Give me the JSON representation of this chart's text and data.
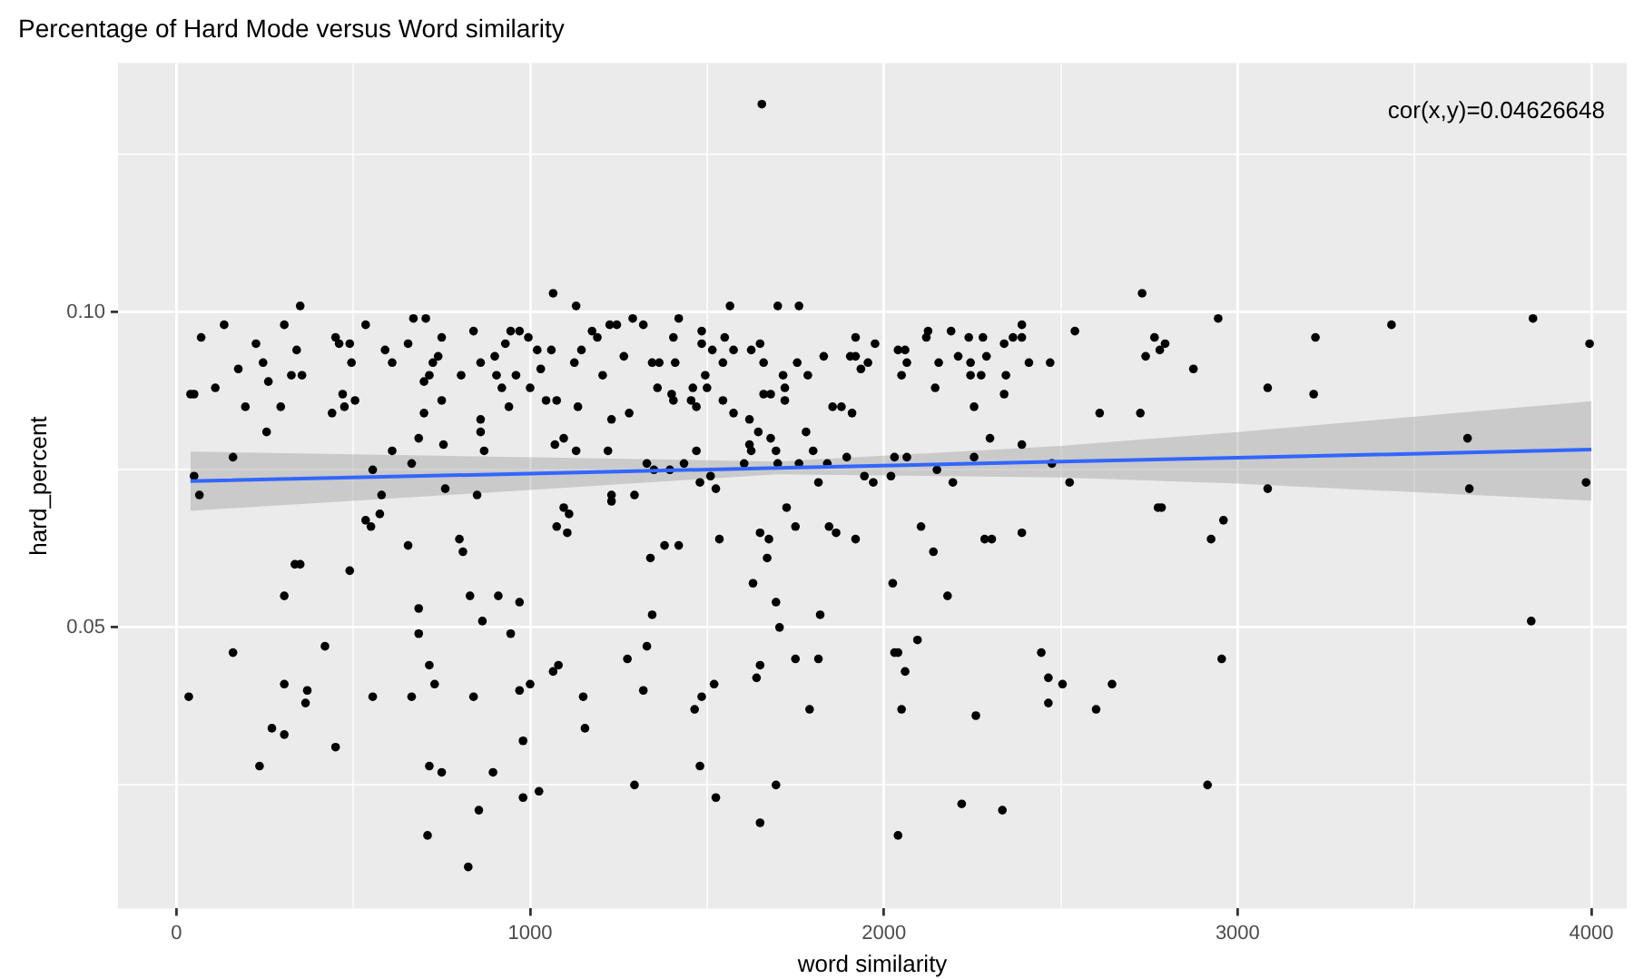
{
  "chart_data": {
    "type": "scatter",
    "title": "Percentage of Hard Mode versus Word similarity",
    "xlabel": "word similarity",
    "ylabel": "hard_percent",
    "xlim": [
      -165,
      4100
    ],
    "ylim": [
      0.0054,
      0.1395
    ],
    "xticks": [
      0,
      {
        "value": 500,
        "label": null
      },
      1000,
      {
        "value": 1500,
        "label": null
      },
      2000,
      {
        "value": 2500,
        "label": null
      },
      3000,
      {
        "value": 3500,
        "label": null
      },
      4000
    ],
    "yticks": [
      {
        "value": 0.025,
        "label": null
      },
      {
        "value": 0.05,
        "label": "0.05"
      },
      {
        "value": 0.075,
        "label": null
      },
      {
        "value": 0.1,
        "label": "0.10"
      },
      {
        "value": 0.125,
        "label": null
      }
    ],
    "grid": true,
    "marker": "circle",
    "annotations": [
      "cor(x,y)=0.04626648"
    ],
    "series": [
      {
        "type": "scatter",
        "color": "#000000",
        "x": [
          40,
          70,
          135,
          50,
          110,
          175,
          195,
          225,
          245,
          255,
          260,
          295,
          305,
          340,
          325,
          350,
          355,
          440,
          450,
          460,
          490,
          495,
          470,
          505,
          475,
          535,
          590,
          610,
          610,
          555,
          655,
          670,
          705,
          715,
          725,
          740,
          700,
          750,
          750,
          700,
          685,
          755,
          665,
          805,
          840,
          860,
          860,
          860,
          870,
          900,
          905,
          920,
          940,
          930,
          945,
          970,
          995,
          960,
          1000,
          1020,
          1030,
          1045,
          1065,
          1060,
          1075,
          1070,
          1095,
          1130,
          1145,
          1125,
          1135,
          1130,
          1175,
          1190,
          1205,
          1230,
          1220,
          1225,
          1245,
          1265,
          1280,
          1290,
          160,
          50,
          65,
          580,
          760,
          850,
          1230,
          1295,
          1655,
          1320,
          1345,
          1365,
          1360,
          1400,
          1405,
          1410,
          1405,
          1420,
          1455,
          1470,
          1460,
          1470,
          1485,
          1485,
          1495,
          1500,
          1515,
          1545,
          1550,
          1545,
          1565,
          1575,
          1575,
          1620,
          1625,
          1650,
          1660,
          1660,
          1680,
          1645,
          1680,
          1620,
          1695,
          1700,
          1760,
          1715,
          1720,
          1720,
          1755,
          1785,
          1780,
          1800,
          1830,
          1855,
          1880,
          1910,
          1905,
          1920,
          1920,
          1935,
          1955,
          1975,
          2040,
          2060,
          2050,
          2065,
          2120,
          2125,
          2155,
          2145,
          2190,
          2210,
          2240,
          2245,
          2245,
          2255,
          2280,
          2275,
          2290,
          2300,
          2340,
          2340,
          2345,
          2365,
          2390,
          2390,
          2410,
          2390,
          2470,
          2540,
          2610,
          2730,
          2725,
          2740,
          2765,
          1330,
          1350,
          1395,
          1435,
          1480,
          1510,
          1525,
          1605,
          1625,
          1700,
          1760,
          1815,
          1840,
          1895,
          1945,
          1970,
          2020,
          2030,
          2065,
          2150,
          2195,
          2255,
          2475,
          2525,
          2780,
          2795,
          2875,
          2945,
          3085,
          3215,
          3220,
          3435,
          3835,
          3995,
          3650,
          3085,
          3655,
          3985,
          1095,
          1110,
          1075,
          1105,
          1230,
          535,
          550,
          575,
          655,
          800,
          810,
          335,
          350,
          490,
          305,
          685,
          830,
          910,
          970,
          865,
          945,
          685,
          160,
          420,
          715,
          730,
          305,
          370,
          365,
          35,
          555,
          665,
          840,
          970,
          1000,
          1065,
          1080,
          1275,
          1150,
          1155,
          270,
          305,
          450,
          980,
          235,
          715,
          750,
          895,
          1295,
          980,
          1025,
          855,
          710,
          825,
          1725,
          1750,
          1845,
          1865,
          1920,
          2105,
          2140,
          2285,
          2305,
          2390,
          2775,
          1340,
          1380,
          1420,
          1535,
          1650,
          1675,
          1670,
          1630,
          1695,
          1820,
          1705,
          1345,
          2025,
          2180,
          1330,
          1650,
          1640,
          1750,
          1815,
          1320,
          1520,
          1485,
          1465,
          1790,
          2095,
          2030,
          2040,
          2060,
          2050,
          2260,
          2445,
          2465,
          2505,
          2465,
          2645,
          2600,
          1480,
          1695,
          1525,
          1650,
          2220,
          2335,
          2040,
          2785,
          2960,
          2925,
          2955,
          2915,
          3830
        ],
        "values": [
          0.087,
          0.096,
          0.098,
          0.087,
          0.088,
          0.091,
          0.085,
          0.095,
          0.092,
          0.081,
          0.089,
          0.085,
          0.098,
          0.094,
          0.09,
          0.101,
          0.09,
          0.084,
          0.096,
          0.095,
          0.095,
          0.092,
          0.087,
          0.086,
          0.085,
          0.098,
          0.094,
          0.092,
          0.078,
          0.075,
          0.095,
          0.099,
          0.099,
          0.09,
          0.092,
          0.093,
          0.089,
          0.096,
          0.086,
          0.084,
          0.08,
          0.079,
          0.076,
          0.09,
          0.097,
          0.092,
          0.083,
          0.081,
          0.078,
          0.093,
          0.09,
          0.088,
          0.085,
          0.095,
          0.097,
          0.097,
          0.096,
          0.09,
          0.088,
          0.094,
          0.091,
          0.086,
          0.103,
          0.094,
          0.086,
          0.079,
          0.08,
          0.101,
          0.094,
          0.092,
          0.085,
          0.078,
          0.097,
          0.096,
          0.09,
          0.083,
          0.078,
          0.098,
          0.098,
          0.093,
          0.084,
          0.099,
          0.077,
          0.074,
          0.071,
          0.071,
          0.072,
          0.071,
          0.071,
          0.071,
          0.133,
          0.098,
          0.092,
          0.092,
          0.088,
          0.087,
          0.086,
          0.092,
          0.096,
          0.099,
          0.086,
          0.085,
          0.088,
          0.078,
          0.097,
          0.095,
          0.09,
          0.088,
          0.094,
          0.092,
          0.096,
          0.086,
          0.101,
          0.094,
          0.084,
          0.083,
          0.094,
          0.095,
          0.092,
          0.087,
          0.087,
          0.081,
          0.08,
          0.079,
          0.078,
          0.101,
          0.101,
          0.09,
          0.088,
          0.086,
          0.092,
          0.09,
          0.081,
          0.078,
          0.093,
          0.085,
          0.085,
          0.084,
          0.093,
          0.093,
          0.096,
          0.091,
          0.092,
          0.095,
          0.094,
          0.094,
          0.09,
          0.092,
          0.096,
          0.097,
          0.092,
          0.088,
          0.097,
          0.093,
          0.096,
          0.092,
          0.09,
          0.085,
          0.096,
          0.09,
          0.093,
          0.08,
          0.087,
          0.095,
          0.09,
          0.096,
          0.096,
          0.098,
          0.092,
          0.079,
          0.092,
          0.097,
          0.084,
          0.103,
          0.084,
          0.093,
          0.096,
          0.076,
          0.075,
          0.075,
          0.076,
          0.073,
          0.074,
          0.072,
          0.076,
          0.078,
          0.076,
          0.076,
          0.073,
          0.076,
          0.077,
          0.074,
          0.073,
          0.074,
          0.077,
          0.077,
          0.075,
          0.073,
          0.077,
          0.076,
          0.073,
          0.094,
          0.095,
          0.091,
          0.099,
          0.088,
          0.087,
          0.096,
          0.098,
          0.099,
          0.095,
          0.08,
          0.072,
          0.072,
          0.073,
          0.069,
          0.068,
          0.066,
          0.065,
          0.07,
          0.067,
          0.066,
          0.068,
          0.063,
          0.064,
          0.062,
          0.06,
          0.06,
          0.059,
          0.055,
          0.053,
          0.055,
          0.055,
          0.054,
          0.051,
          0.049,
          0.049,
          0.046,
          0.047,
          0.044,
          0.041,
          0.041,
          0.04,
          0.038,
          0.039,
          0.039,
          0.039,
          0.039,
          0.04,
          0.041,
          0.043,
          0.044,
          0.045,
          0.039,
          0.034,
          0.034,
          0.033,
          0.031,
          0.032,
          0.028,
          0.028,
          0.027,
          0.027,
          0.025,
          0.023,
          0.024,
          0.021,
          0.017,
          0.012,
          0.069,
          0.066,
          0.066,
          0.065,
          0.064,
          0.066,
          0.062,
          0.064,
          0.064,
          0.065,
          0.069,
          0.061,
          0.063,
          0.063,
          0.064,
          0.065,
          0.064,
          0.061,
          0.057,
          0.054,
          0.052,
          0.05,
          0.052,
          0.057,
          0.055,
          0.047,
          0.044,
          0.042,
          0.045,
          0.045,
          0.04,
          0.041,
          0.039,
          0.037,
          0.037,
          0.048,
          0.046,
          0.046,
          0.043,
          0.037,
          0.036,
          0.046,
          0.042,
          0.041,
          0.038,
          0.041,
          0.037,
          0.028,
          0.025,
          0.023,
          0.019,
          0.022,
          0.021,
          0.017,
          0.069,
          0.067,
          0.064,
          0.045,
          0.025,
          0.051
        ]
      },
      {
        "type": "line",
        "color": "#3366ff",
        "marker": "none",
        "x": [
          40,
          1000,
          1700,
          2500,
          3000,
          4000
        ],
        "values": [
          0.0732,
          0.0744,
          0.0753,
          0.0763,
          0.0769,
          0.0782
        ],
        "lower": [
          0.0685,
          0.0718,
          0.0743,
          0.0738,
          0.0728,
          0.0701
        ],
        "upper": [
          0.0779,
          0.077,
          0.0763,
          0.0788,
          0.081,
          0.0859
        ]
      }
    ]
  }
}
